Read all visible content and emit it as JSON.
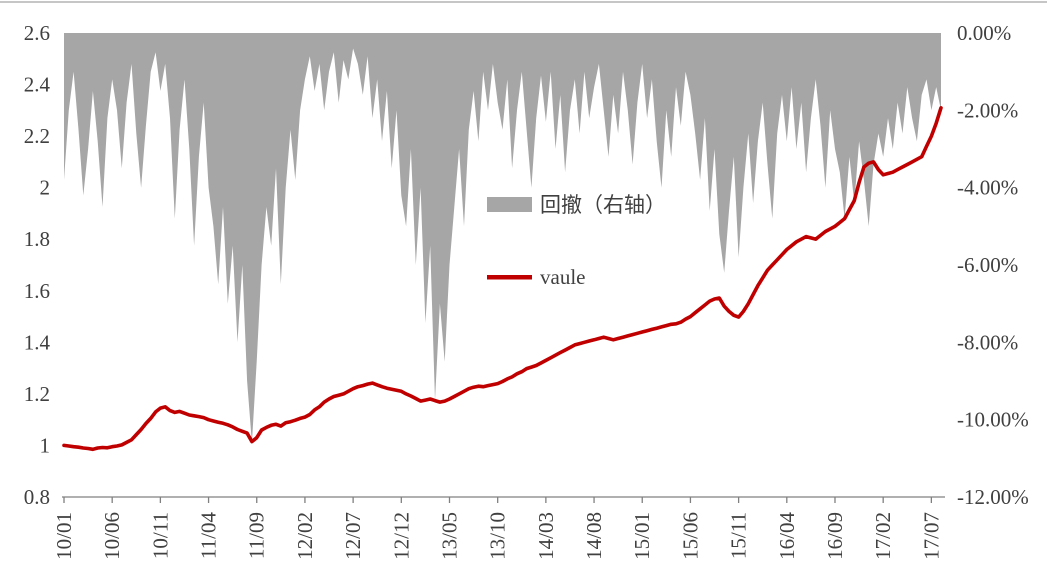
{
  "page": {
    "background": "#ffffff",
    "top_border_color": "#c6c6c6",
    "text_color": "#404040",
    "axis_color": "#808080"
  },
  "chart_data": {
    "type": "combo",
    "title": "",
    "xlabel": "",
    "ylabel": "",
    "grid": false,
    "legend_position": "center",
    "x_unit": "months since 2010-01",
    "x_max": 91,
    "x_ticks": [
      {
        "t": 0,
        "label": "10/01"
      },
      {
        "t": 5,
        "label": "10/06"
      },
      {
        "t": 10,
        "label": "10/11"
      },
      {
        "t": 15,
        "label": "11/04"
      },
      {
        "t": 20,
        "label": "11/09"
      },
      {
        "t": 25,
        "label": "12/02"
      },
      {
        "t": 30,
        "label": "12/07"
      },
      {
        "t": 35,
        "label": "12/12"
      },
      {
        "t": 40,
        "label": "13/05"
      },
      {
        "t": 45,
        "label": "13/10"
      },
      {
        "t": 50,
        "label": "14/03"
      },
      {
        "t": 55,
        "label": "14/08"
      },
      {
        "t": 60,
        "label": "15/01"
      },
      {
        "t": 65,
        "label": "15/06"
      },
      {
        "t": 70,
        "label": "15/11"
      },
      {
        "t": 75,
        "label": "16/04"
      },
      {
        "t": 80,
        "label": "16/09"
      },
      {
        "t": 85,
        "label": "17/02"
      },
      {
        "t": 90,
        "label": "17/07"
      }
    ],
    "left_axis": {
      "min": 0.8,
      "max": 2.6,
      "ticks": [
        "2.6",
        "2.4",
        "2.2",
        "2",
        "1.8",
        "1.6",
        "1.4",
        "1.2",
        "1",
        "0.8"
      ]
    },
    "right_axis": {
      "min": -12,
      "max": 0,
      "ticks": [
        "0.00%",
        "-2.00%",
        "-4.00%",
        "-6.00%",
        "-8.00%",
        "-10.00%",
        "-12.00%"
      ]
    },
    "series": [
      {
        "name": "回撤（右轴）",
        "type": "area",
        "axis": "right",
        "color": "#a6a6a6",
        "x_start": 0,
        "x_step": 0.5,
        "values": [
          -3.8,
          -2.0,
          -1.0,
          -2.5,
          -4.2,
          -3.0,
          -1.5,
          -2.8,
          -4.5,
          -2.2,
          -1.2,
          -2.0,
          -3.5,
          -1.8,
          -0.8,
          -2.6,
          -4.0,
          -2.4,
          -1.0,
          -0.5,
          -1.5,
          -0.8,
          -2.2,
          -4.8,
          -2.5,
          -1.2,
          -3.0,
          -5.5,
          -3.2,
          -1.8,
          -4.0,
          -5.0,
          -6.5,
          -4.5,
          -7.0,
          -5.5,
          -8.0,
          -6.0,
          -9.0,
          -10.6,
          -8.5,
          -6.0,
          -4.5,
          -5.5,
          -3.5,
          -6.5,
          -4.0,
          -2.5,
          -3.8,
          -2.0,
          -1.2,
          -0.6,
          -1.5,
          -0.8,
          -2.0,
          -1.0,
          -0.5,
          -1.8,
          -0.7,
          -1.2,
          -0.4,
          -0.8,
          -1.6,
          -0.6,
          -2.2,
          -1.2,
          -2.8,
          -1.5,
          -3.5,
          -2.0,
          -4.2,
          -5.0,
          -3.0,
          -6.0,
          -4.0,
          -7.5,
          -5.5,
          -9.5,
          -7.0,
          -8.5,
          -6.0,
          -4.5,
          -3.0,
          -5.0,
          -2.5,
          -1.5,
          -2.8,
          -1.0,
          -2.0,
          -0.8,
          -1.8,
          -2.5,
          -1.2,
          -3.5,
          -2.0,
          -1.0,
          -2.5,
          -4.0,
          -2.2,
          -1.1,
          -2.3,
          -1.0,
          -3.0,
          -1.6,
          -3.6,
          -2.0,
          -1.2,
          -2.6,
          -1.0,
          -2.2,
          -1.4,
          -0.8,
          -2.0,
          -3.2,
          -1.6,
          -2.6,
          -1.0,
          -2.0,
          -3.4,
          -1.8,
          -0.8,
          -2.2,
          -1.2,
          -2.8,
          -4.0,
          -2.0,
          -3.2,
          -1.4,
          -2.4,
          -1.0,
          -1.6,
          -2.6,
          -3.8,
          -2.2,
          -4.6,
          -3.0,
          -5.2,
          -6.2,
          -4.6,
          -3.2,
          -5.8,
          -4.0,
          -2.6,
          -4.4,
          -2.8,
          -1.8,
          -3.4,
          -4.8,
          -2.6,
          -1.6,
          -2.8,
          -1.4,
          -3.0,
          -1.8,
          -3.6,
          -2.2,
          -1.2,
          -2.4,
          -4.0,
          -2.0,
          -3.0,
          -3.6,
          -4.8,
          -3.2,
          -4.4,
          -2.8,
          -3.8,
          -5.0,
          -3.4,
          -2.6,
          -3.2,
          -2.2,
          -3.0,
          -1.8,
          -2.6,
          -1.4,
          -2.2,
          -2.8,
          -1.6,
          -1.2,
          -2.0,
          -1.4,
          -2.0
        ]
      },
      {
        "name": "vaule",
        "type": "line",
        "axis": "left",
        "color": "#c00000",
        "x_start": 0,
        "x_step": 0.5,
        "values": [
          1.0,
          0.998,
          0.995,
          0.993,
          0.99,
          0.988,
          0.985,
          0.99,
          0.992,
          0.991,
          0.995,
          0.998,
          1.002,
          1.012,
          1.022,
          1.042,
          1.062,
          1.085,
          1.105,
          1.13,
          1.145,
          1.15,
          1.135,
          1.128,
          1.132,
          1.125,
          1.118,
          1.115,
          1.112,
          1.108,
          1.1,
          1.095,
          1.09,
          1.086,
          1.08,
          1.072,
          1.062,
          1.055,
          1.048,
          1.015,
          1.03,
          1.06,
          1.07,
          1.078,
          1.082,
          1.075,
          1.088,
          1.092,
          1.098,
          1.105,
          1.11,
          1.12,
          1.138,
          1.15,
          1.168,
          1.18,
          1.19,
          1.195,
          1.2,
          1.21,
          1.22,
          1.228,
          1.232,
          1.238,
          1.242,
          1.235,
          1.228,
          1.222,
          1.218,
          1.214,
          1.21,
          1.2,
          1.192,
          1.182,
          1.172,
          1.176,
          1.18,
          1.174,
          1.168,
          1.172,
          1.18,
          1.19,
          1.2,
          1.21,
          1.22,
          1.226,
          1.23,
          1.228,
          1.232,
          1.236,
          1.24,
          1.248,
          1.258,
          1.266,
          1.278,
          1.286,
          1.298,
          1.304,
          1.31,
          1.32,
          1.33,
          1.34,
          1.35,
          1.36,
          1.37,
          1.38,
          1.39,
          1.395,
          1.4,
          1.405,
          1.41,
          1.415,
          1.42,
          1.415,
          1.41,
          1.415,
          1.42,
          1.425,
          1.43,
          1.435,
          1.44,
          1.445,
          1.45,
          1.455,
          1.46,
          1.465,
          1.47,
          1.472,
          1.478,
          1.49,
          1.5,
          1.515,
          1.53,
          1.545,
          1.56,
          1.568,
          1.572,
          1.54,
          1.52,
          1.505,
          1.498,
          1.52,
          1.55,
          1.585,
          1.62,
          1.65,
          1.68,
          1.7,
          1.72,
          1.74,
          1.76,
          1.775,
          1.79,
          1.8,
          1.81,
          1.805,
          1.8,
          1.815,
          1.83,
          1.84,
          1.85,
          1.865,
          1.88,
          1.915,
          1.95,
          2.02,
          2.08,
          2.095,
          2.1,
          2.07,
          2.05,
          2.055,
          2.06,
          2.07,
          2.08,
          2.09,
          2.1,
          2.11,
          2.12,
          2.16,
          2.2,
          2.25,
          2.31
        ]
      }
    ]
  }
}
